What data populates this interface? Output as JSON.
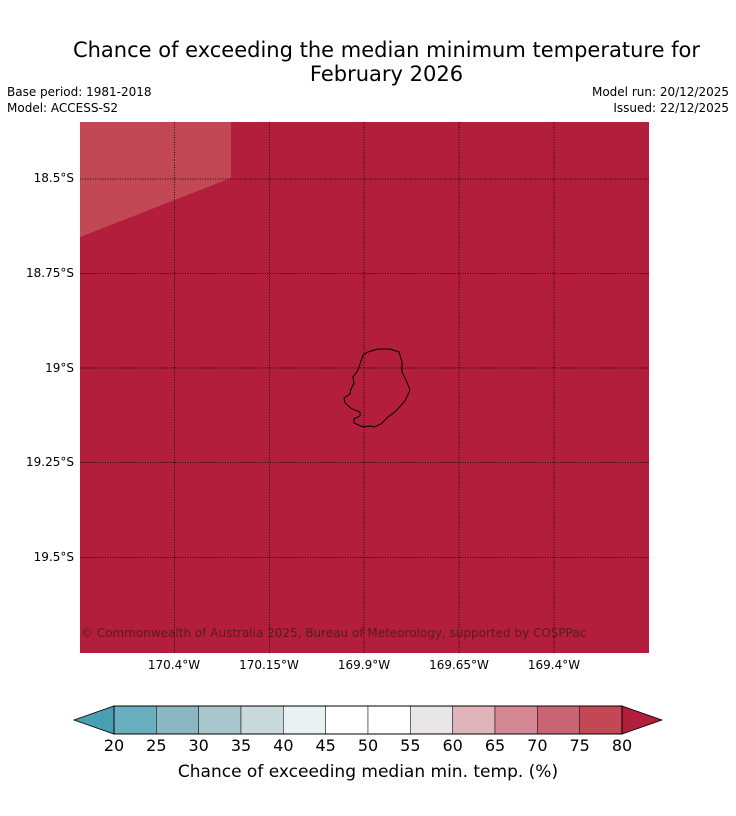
{
  "title_line1": "Chance of exceeding the median minimum temperature for",
  "title_line2": "February 2026",
  "meta": {
    "base_period": "Base period: 1981-2018",
    "model": "Model: ACCESS-S2",
    "model_run": "Model run: 20/12/2025",
    "issued": "Issued: 22/12/2025"
  },
  "map": {
    "background_color": "#b21e3b",
    "patch_color": "#c34855",
    "island_outline_color": "#000000",
    "latitude_labels": [
      "18.5°S",
      "18.75°S",
      "19°S",
      "19.25°S",
      "19.5°S"
    ],
    "longitude_labels": [
      "170.4°W",
      "170.15°W",
      "169.9°W",
      "169.65°W",
      "169.4°W"
    ],
    "copyright": "© Commonwealth of Australia 2025, Bureau of Meteorology, supported by COSPPac"
  },
  "colorbar": {
    "title": "Chance of exceeding median min. temp. (%)",
    "tick_labels": [
      "20",
      "25",
      "30",
      "35",
      "40",
      "45",
      "50",
      "55",
      "60",
      "65",
      "70",
      "75",
      "80"
    ],
    "colors": [
      "#4aa0b3",
      "#6aafbf",
      "#8bb7c3",
      "#a8c6cb",
      "#c9d9dc",
      "#e9f0f1",
      "#ffffff",
      "#ffffff",
      "#e9e6e7",
      "#e0b5ba",
      "#d58893",
      "#c96472",
      "#c34855",
      "#b21e3b"
    ]
  }
}
